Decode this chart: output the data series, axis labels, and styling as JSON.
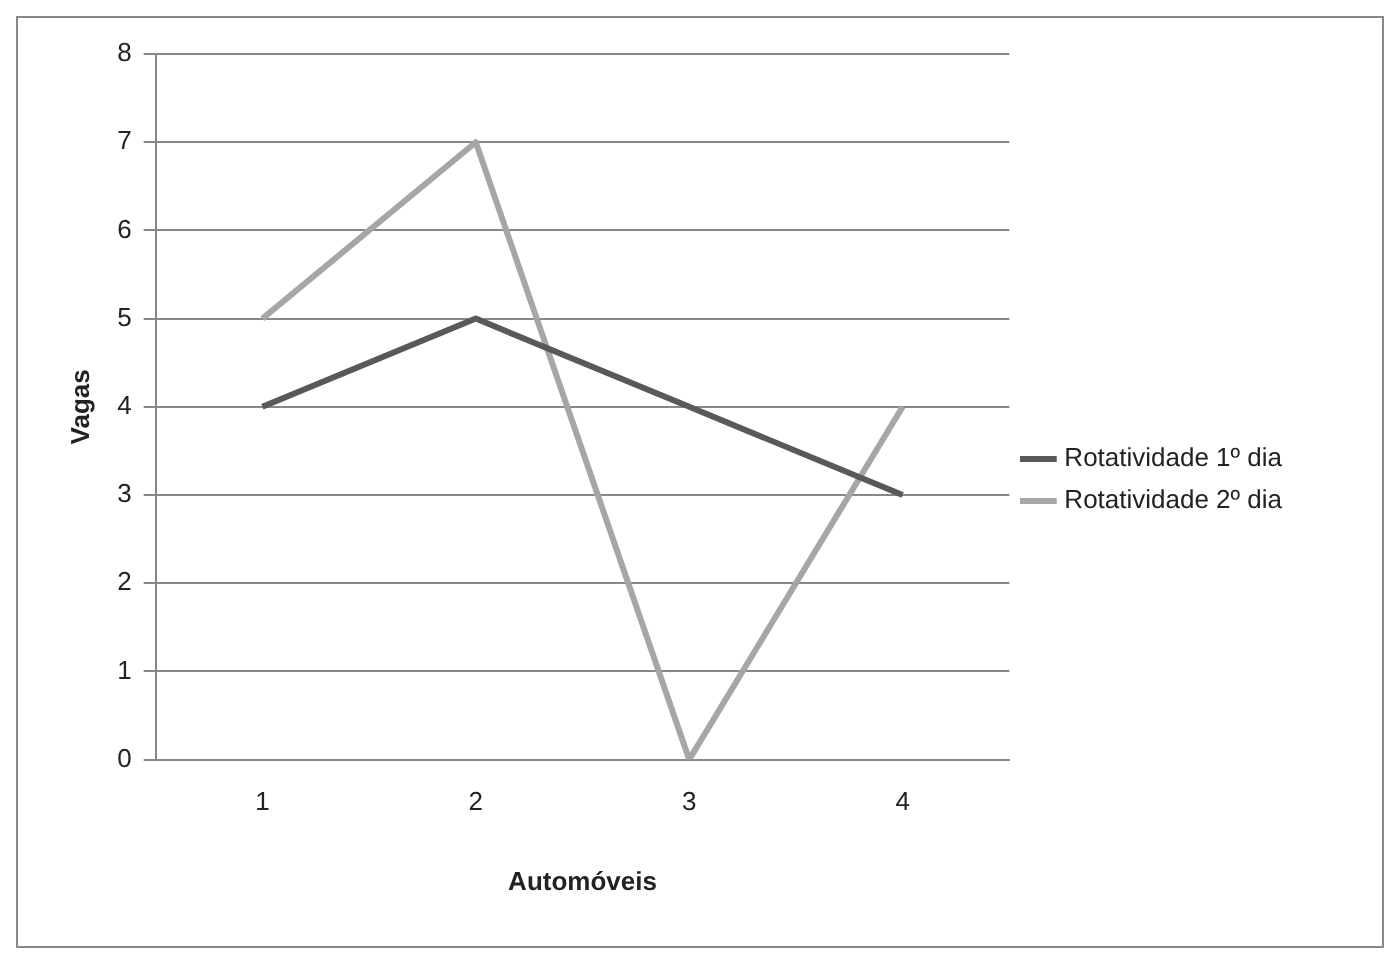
{
  "chart_data": {
    "type": "line",
    "xlabel": "Automóveis",
    "ylabel": "Vagas",
    "categories": [
      "1",
      "2",
      "3",
      "4"
    ],
    "series": [
      {
        "name": "Rotatividade 1º dia",
        "color": "#595959",
        "values": [
          4,
          5,
          4,
          3
        ]
      },
      {
        "name": "Rotatividade 2º dia",
        "color": "#a6a6a6",
        "values": [
          5,
          7,
          0,
          4
        ]
      }
    ],
    "ylim": [
      0,
      8
    ],
    "yticks": [
      0,
      1,
      2,
      3,
      4,
      5,
      6,
      7,
      8
    ],
    "grid": "y",
    "legend": "right",
    "marker": "none",
    "line_style": "solid"
  }
}
